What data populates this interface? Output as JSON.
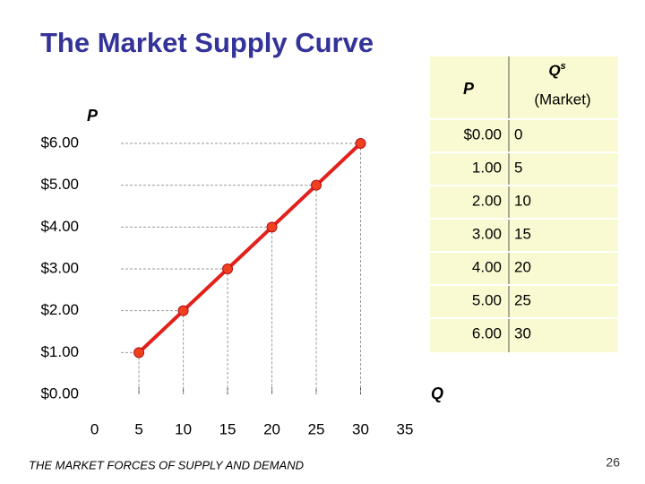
{
  "title": "The Market Supply Curve",
  "chart_data": {
    "type": "line",
    "x": [
      5,
      10,
      15,
      20,
      25,
      30
    ],
    "series": [
      {
        "color": "#e3201b",
        "values": [
          1,
          2,
          3,
          4,
          5,
          6
        ]
      }
    ],
    "xlabel": "Q",
    "ylabel": "P",
    "xlim": [
      0,
      35
    ],
    "xticks": [
      0,
      5,
      10,
      15,
      20,
      25,
      30,
      35
    ],
    "ylim": [
      0,
      6
    ],
    "yticks": [
      {
        "value": 0,
        "label": "$0.00"
      },
      {
        "value": 1,
        "label": "$1.00"
      },
      {
        "value": 2,
        "label": "$2.00"
      },
      {
        "value": 3,
        "label": "$3.00"
      },
      {
        "value": 4,
        "label": "$4.00"
      },
      {
        "value": 5,
        "label": "$5.00"
      },
      {
        "value": 6,
        "label": "$6.00"
      }
    ]
  },
  "table": {
    "header": [
      "P",
      {
        "main": "Q",
        "sup": "s",
        "note": "(Market)"
      }
    ],
    "rows": [
      [
        "$0.00",
        "0"
      ],
      [
        "1.00",
        "5"
      ],
      [
        "2.00",
        "10"
      ],
      [
        "3.00",
        "15"
      ],
      [
        "4.00",
        "20"
      ],
      [
        "5.00",
        "25"
      ],
      [
        "6.00",
        "30"
      ]
    ]
  },
  "footer": "THE MARKET FORCES OF SUPPLY AND DEMAND",
  "page_number": "26"
}
